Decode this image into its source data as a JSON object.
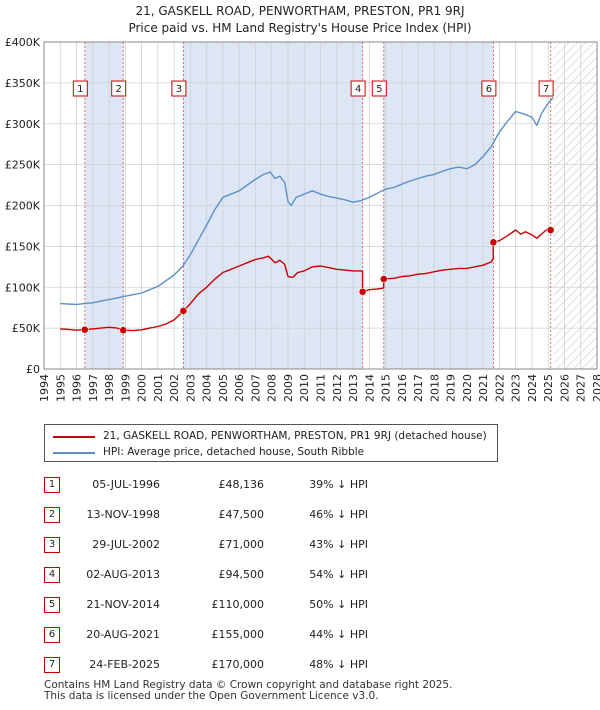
{
  "title_line1": "21, GASKELL ROAD, PENWORTHAM, PRESTON, PR1 9RJ",
  "title_line2": "Price paid vs. HM Land Registry's House Price Index (HPI)",
  "colors": {
    "price": "#cc0000",
    "hpi": "#5b8fc9",
    "shade": "#dde6f5",
    "hatch": "#c8c8c8",
    "marker_border": "#cc0000"
  },
  "chart_data": {
    "type": "line",
    "xlim": [
      1994,
      2028
    ],
    "ylim": [
      0,
      400000
    ],
    "yticks": [
      0,
      50000,
      100000,
      150000,
      200000,
      250000,
      300000,
      350000,
      400000
    ],
    "ytick_labels": [
      "£0",
      "£50K",
      "£100K",
      "£150K",
      "£200K",
      "£250K",
      "£300K",
      "£350K",
      "£400K"
    ],
    "xticks": [
      1994,
      1995,
      1996,
      1997,
      1998,
      1999,
      2000,
      2001,
      2002,
      2003,
      2004,
      2005,
      2006,
      2007,
      2008,
      2009,
      2010,
      2011,
      2012,
      2013,
      2014,
      2015,
      2016,
      2017,
      2018,
      2019,
      2020,
      2021,
      2022,
      2023,
      2024,
      2025,
      2026,
      2027,
      2028
    ],
    "data_start": 1995.0,
    "data_end": 2025.3,
    "sales": [
      {
        "label": "1",
        "x": 1996.51,
        "y": 48136
      },
      {
        "label": "2",
        "x": 1998.87,
        "y": 47500
      },
      {
        "label": "3",
        "x": 2002.57,
        "y": 71000
      },
      {
        "label": "4",
        "x": 2013.59,
        "y": 94500
      },
      {
        "label": "5",
        "x": 2014.89,
        "y": 110000
      },
      {
        "label": "6",
        "x": 2021.63,
        "y": 155000
      },
      {
        "label": "7",
        "x": 2025.15,
        "y": 170000
      }
    ],
    "series": [
      {
        "name": "21, GASKELL ROAD, PENWORTHAM, PRESTON, PR1 9RJ (detached house)",
        "x": [
          1995.0,
          1995.5,
          1996.0,
          1996.51,
          1997.0,
          1997.5,
          1998.0,
          1998.5,
          1998.87,
          1999.5,
          2000.0,
          2000.5,
          2001.0,
          2001.5,
          2002.0,
          2002.57,
          2003.0,
          2003.5,
          2004.0,
          2004.5,
          2005.0,
          2005.5,
          2006.0,
          2006.5,
          2007.0,
          2007.5,
          2007.8,
          2008.2,
          2008.5,
          2008.8,
          2009.0,
          2009.3,
          2009.6,
          2010.0,
          2010.5,
          2011.0,
          2011.5,
          2012.0,
          2012.5,
          2013.0,
          2013.58,
          2013.59,
          2014.0,
          2014.5,
          2014.88,
          2014.89,
          2015.5,
          2016.0,
          2016.5,
          2017.0,
          2017.5,
          2018.0,
          2018.5,
          2019.0,
          2019.5,
          2020.0,
          2020.5,
          2021.0,
          2021.5,
          2021.62,
          2021.63,
          2022.0,
          2022.5,
          2023.0,
          2023.3,
          2023.6,
          2024.0,
          2024.3,
          2024.7,
          2025.0,
          2025.15
        ],
        "y": [
          49000,
          48500,
          47500,
          48136,
          49000,
          50000,
          51000,
          50000,
          47500,
          47000,
          48000,
          50000,
          52000,
          55000,
          60000,
          71000,
          80000,
          92000,
          100000,
          110000,
          118000,
          122000,
          126000,
          130000,
          134000,
          136000,
          138000,
          130000,
          133000,
          128000,
          113000,
          112000,
          118000,
          120000,
          125000,
          126000,
          124000,
          122000,
          121000,
          120000,
          120000,
          94500,
          97000,
          98000,
          99000,
          110000,
          111000,
          113000,
          114000,
          116000,
          117000,
          119000,
          121000,
          122000,
          123000,
          123000,
          125000,
          127000,
          131000,
          135000,
          155000,
          157000,
          163000,
          170000,
          165000,
          168000,
          164000,
          160000,
          167000,
          172000,
          170000
        ]
      },
      {
        "name": "HPI: Average price, detached house, South Ribble",
        "x": [
          1995.0,
          1995.5,
          1996.0,
          1996.5,
          1997.0,
          1997.5,
          1998.0,
          1998.5,
          1999.0,
          1999.5,
          2000.0,
          2000.5,
          2001.0,
          2001.5,
          2002.0,
          2002.5,
          2003.0,
          2003.5,
          2004.0,
          2004.5,
          2005.0,
          2005.5,
          2006.0,
          2006.5,
          2007.0,
          2007.5,
          2007.9,
          2008.2,
          2008.5,
          2008.8,
          2009.0,
          2009.2,
          2009.5,
          2010.0,
          2010.5,
          2011.0,
          2011.5,
          2012.0,
          2012.5,
          2013.0,
          2013.5,
          2014.0,
          2014.5,
          2015.0,
          2015.5,
          2016.0,
          2016.5,
          2017.0,
          2017.5,
          2018.0,
          2018.5,
          2019.0,
          2019.5,
          2020.0,
          2020.5,
          2021.0,
          2021.5,
          2022.0,
          2022.5,
          2023.0,
          2023.5,
          2024.0,
          2024.3,
          2024.6,
          2025.0,
          2025.3
        ],
        "y": [
          80000,
          79500,
          79000,
          80000,
          81000,
          83000,
          85000,
          87000,
          89000,
          91000,
          93000,
          97000,
          101000,
          108000,
          115000,
          125000,
          140000,
          158000,
          176000,
          195000,
          210000,
          214000,
          218000,
          225000,
          232000,
          238000,
          241000,
          233000,
          236000,
          228000,
          205000,
          200000,
          210000,
          214000,
          218000,
          214000,
          211000,
          209000,
          207000,
          204000,
          206000,
          210000,
          215000,
          220000,
          222000,
          226000,
          230000,
          233000,
          236000,
          238000,
          242000,
          245000,
          247000,
          245000,
          250000,
          260000,
          272000,
          290000,
          303000,
          315000,
          312000,
          308000,
          298000,
          313000,
          325000,
          332000
        ]
      }
    ]
  },
  "legend": [
    {
      "label": "21, GASKELL ROAD, PENWORTHAM, PRESTON, PR1 9RJ (detached house)"
    },
    {
      "label": "HPI: Average price, detached house, South Ribble"
    }
  ],
  "table": [
    {
      "num": "1",
      "date": "05-JUL-1996",
      "price": "£48,136",
      "hpi": "39% ↓ HPI"
    },
    {
      "num": "2",
      "date": "13-NOV-1998",
      "price": "£47,500",
      "hpi": "46% ↓ HPI"
    },
    {
      "num": "3",
      "date": "29-JUL-2002",
      "price": "£71,000",
      "hpi": "43% ↓ HPI"
    },
    {
      "num": "4",
      "date": "02-AUG-2013",
      "price": "£94,500",
      "hpi": "54% ↓ HPI"
    },
    {
      "num": "5",
      "date": "21-NOV-2014",
      "price": "£110,000",
      "hpi": "50% ↓ HPI"
    },
    {
      "num": "6",
      "date": "20-AUG-2021",
      "price": "£155,000",
      "hpi": "44% ↓ HPI"
    },
    {
      "num": "7",
      "date": "24-FEB-2025",
      "price": "£170,000",
      "hpi": "48% ↓ HPI"
    }
  ],
  "footer_line1": "Contains HM Land Registry data © Crown copyright and database right 2025.",
  "footer_line2": "This data is licensed under the Open Government Licence v3.0."
}
